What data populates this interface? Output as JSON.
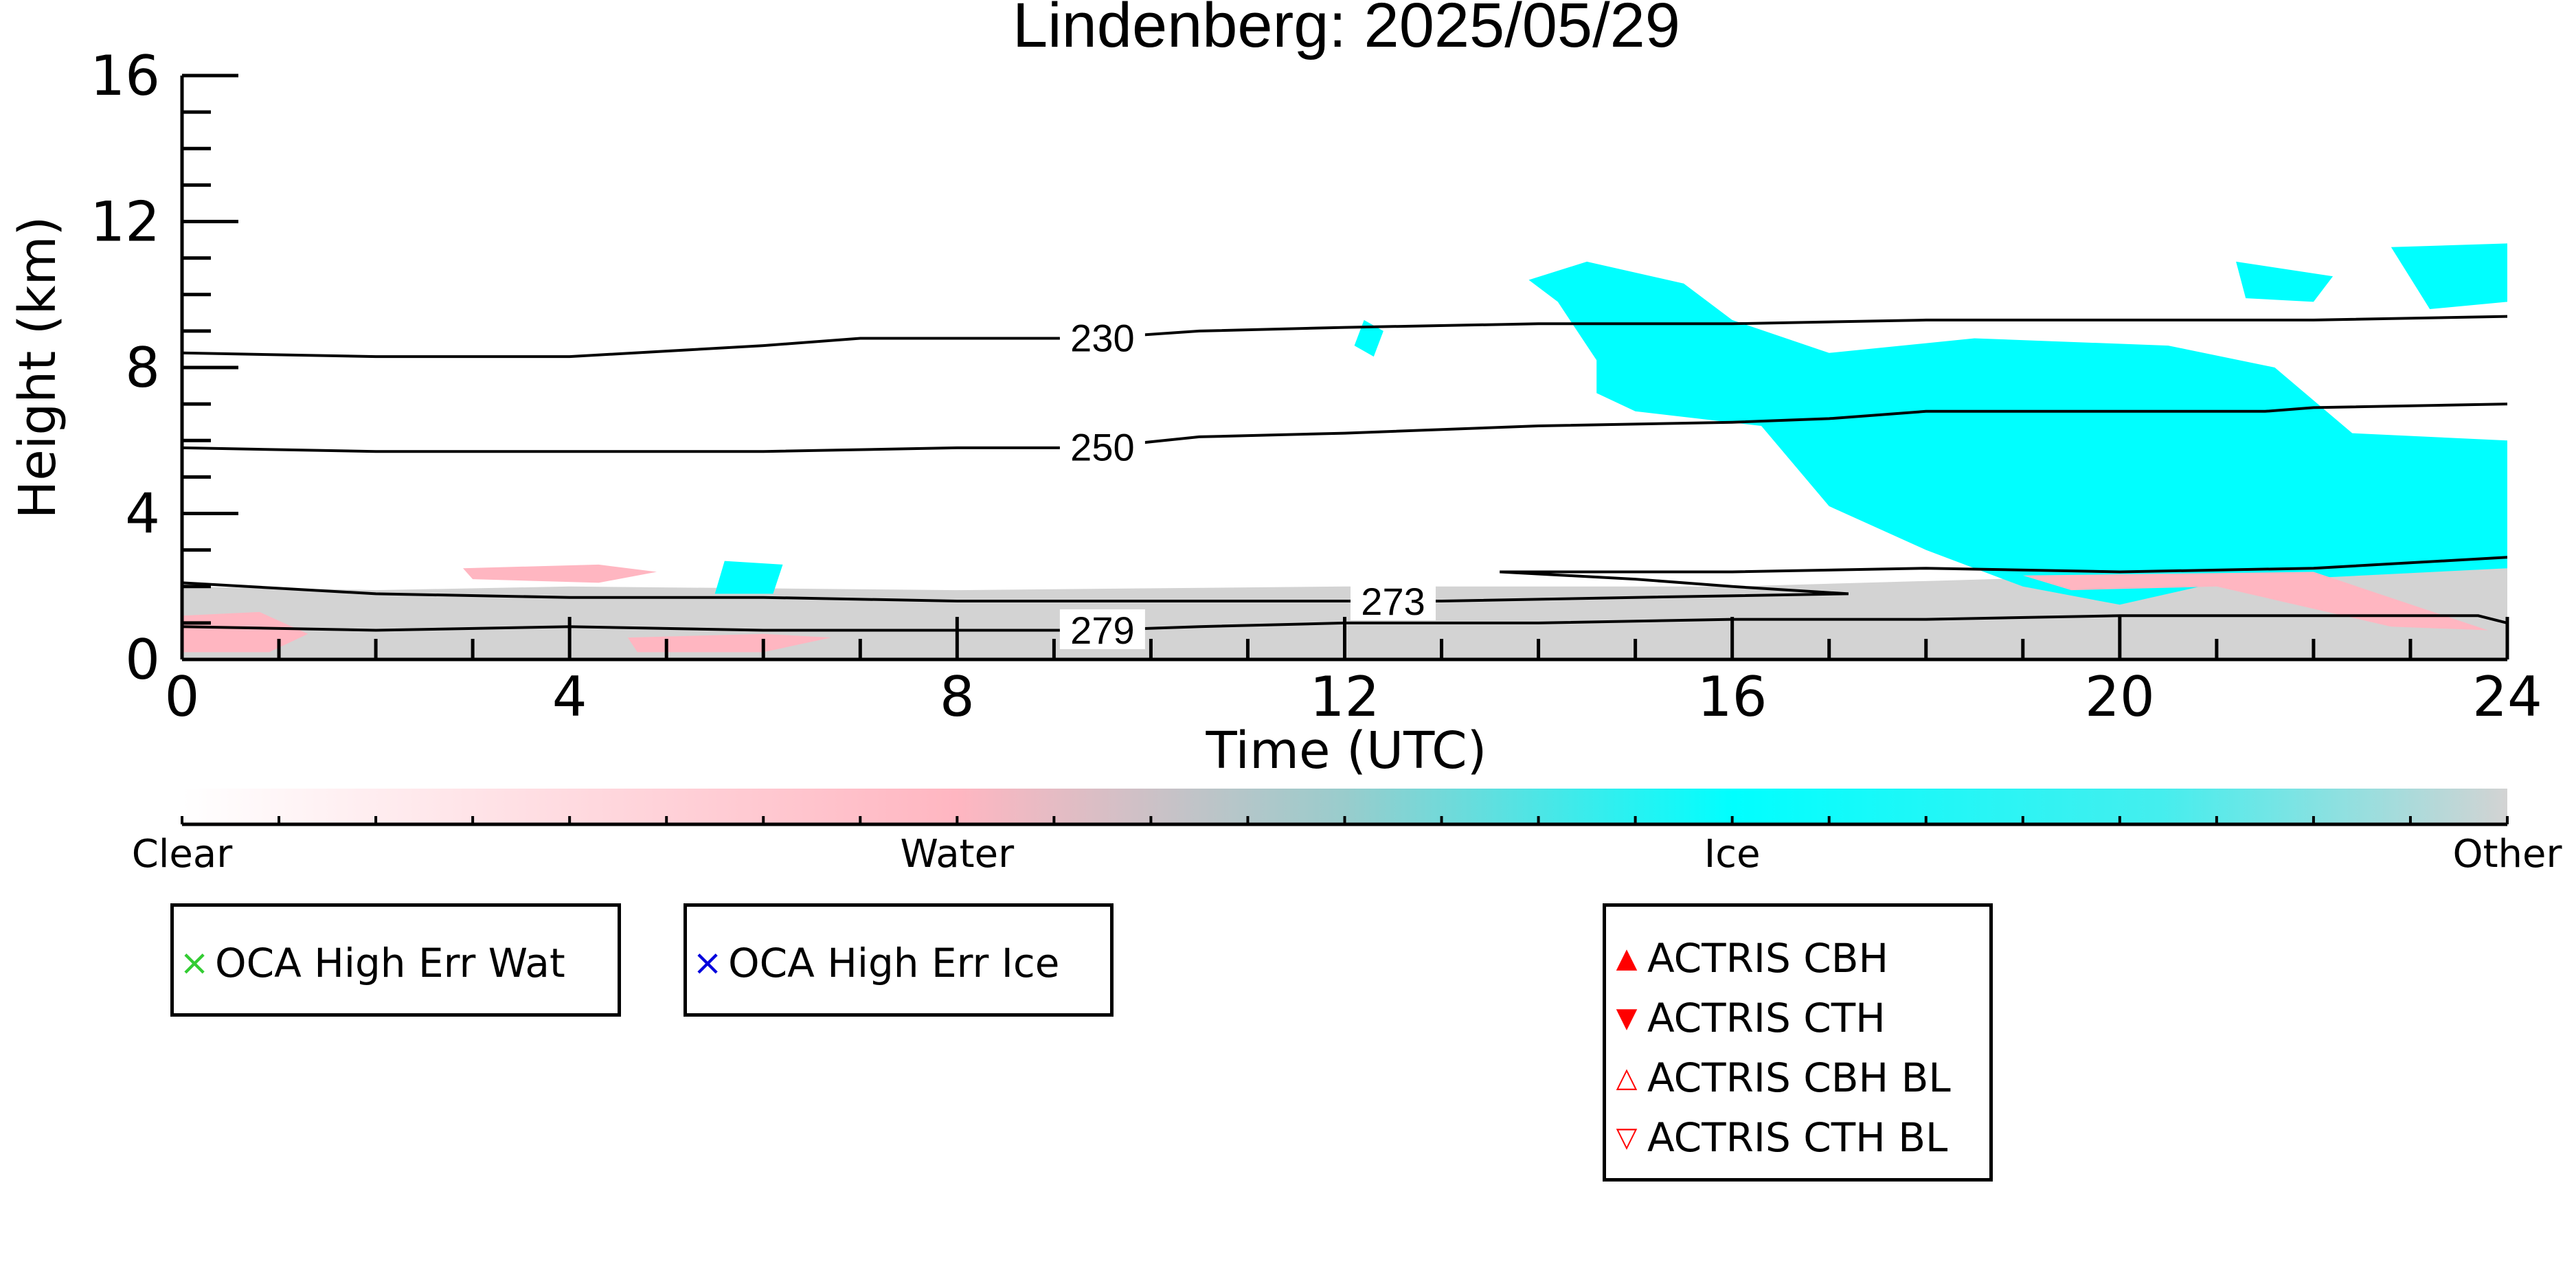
{
  "chart_data": {
    "type": "heatmap",
    "title": "Lindenberg: 2025/05/29",
    "xlabel": "Time (UTC)",
    "ylabel": "Height (km)",
    "xlim": [
      0,
      24
    ],
    "ylim": [
      0,
      16
    ],
    "x_ticks": [
      "0",
      "4",
      "8",
      "12",
      "16",
      "20",
      "24"
    ],
    "y_ticks": [
      "0",
      "4",
      "8",
      "12",
      "16"
    ],
    "classes": [
      {
        "name": "Clear",
        "color": "#ffffff"
      },
      {
        "name": "Water",
        "color": "#ffb6c1"
      },
      {
        "name": "Ice",
        "color": "#00ffff"
      },
      {
        "name": "Other",
        "color": "#d3d3d3"
      }
    ],
    "regions": [
      {
        "class": "Other",
        "points": [
          [
            0,
            0
          ],
          [
            0,
            2.0
          ],
          [
            2,
            1.9
          ],
          [
            4,
            2.0
          ],
          [
            8,
            1.9
          ],
          [
            12,
            2.0
          ],
          [
            16,
            2.0
          ],
          [
            20,
            2.3
          ],
          [
            24,
            2.6
          ],
          [
            24,
            0
          ]
        ]
      },
      {
        "class": "Ice",
        "points": [
          [
            13.9,
            10.4
          ],
          [
            14.5,
            10.9
          ],
          [
            15.5,
            10.3
          ],
          [
            16.0,
            9.3
          ],
          [
            17.0,
            8.4
          ],
          [
            18.5,
            8.8
          ],
          [
            20.5,
            8.6
          ],
          [
            21.6,
            8.0
          ],
          [
            22.4,
            6.2
          ],
          [
            24,
            6.0
          ],
          [
            24,
            2.5
          ],
          [
            21.0,
            2.1
          ],
          [
            20.0,
            1.5
          ],
          [
            19.0,
            2.0
          ],
          [
            18.0,
            3.0
          ],
          [
            17.0,
            4.2
          ],
          [
            16.3,
            6.4
          ],
          [
            15.0,
            6.8
          ],
          [
            14.6,
            7.3
          ],
          [
            14.6,
            8.2
          ],
          [
            14.2,
            9.8
          ]
        ]
      },
      {
        "class": "Ice",
        "points": [
          [
            21.2,
            10.9
          ],
          [
            22.2,
            10.5
          ],
          [
            22.0,
            9.8
          ],
          [
            21.3,
            9.9
          ]
        ]
      },
      {
        "class": "Ice",
        "points": [
          [
            22.8,
            11.3
          ],
          [
            24,
            11.4
          ],
          [
            24,
            9.8
          ],
          [
            23.2,
            9.6
          ]
        ]
      },
      {
        "class": "Ice",
        "points": [
          [
            12.2,
            9.3
          ],
          [
            12.4,
            9.0
          ],
          [
            12.3,
            8.3
          ],
          [
            12.1,
            8.6
          ]
        ]
      },
      {
        "class": "Ice",
        "points": [
          [
            5.6,
            2.7
          ],
          [
            6.2,
            2.6
          ],
          [
            6.1,
            1.8
          ],
          [
            5.5,
            1.8
          ]
        ]
      },
      {
        "class": "Water",
        "points": [
          [
            2.9,
            2.5
          ],
          [
            4.3,
            2.6
          ],
          [
            4.9,
            2.4
          ],
          [
            4.3,
            2.1
          ],
          [
            3.0,
            2.2
          ]
        ]
      },
      {
        "class": "Water",
        "points": [
          [
            0,
            1.2
          ],
          [
            0.8,
            1.3
          ],
          [
            1.3,
            0.7
          ],
          [
            0.9,
            0.2
          ],
          [
            0,
            0.2
          ]
        ]
      },
      {
        "class": "Water",
        "points": [
          [
            4.6,
            0.6
          ],
          [
            6.0,
            0.7
          ],
          [
            6.7,
            0.6
          ],
          [
            6.0,
            0.2
          ],
          [
            4.7,
            0.2
          ]
        ]
      },
      {
        "class": "Water",
        "points": [
          [
            19.0,
            2.3
          ],
          [
            22.0,
            2.4
          ],
          [
            23.8,
            0.8
          ],
          [
            22.8,
            0.9
          ],
          [
            21.0,
            2.0
          ],
          [
            19.5,
            1.9
          ]
        ]
      }
    ],
    "isotherms": [
      {
        "label": "230",
        "label_at": 9.5,
        "points": [
          [
            0,
            8.4
          ],
          [
            2,
            8.3
          ],
          [
            4,
            8.3
          ],
          [
            6,
            8.6
          ],
          [
            7,
            8.8
          ],
          [
            9.4,
            8.8
          ],
          [
            10.5,
            9.0
          ],
          [
            12,
            9.1
          ],
          [
            14,
            9.2
          ],
          [
            16,
            9.2
          ],
          [
            18,
            9.3
          ],
          [
            20,
            9.3
          ],
          [
            22,
            9.3
          ],
          [
            24,
            9.4
          ]
        ]
      },
      {
        "label": "250",
        "label_at": 9.5,
        "points": [
          [
            0,
            5.8
          ],
          [
            2,
            5.7
          ],
          [
            4,
            5.7
          ],
          [
            6,
            5.7
          ],
          [
            8,
            5.8
          ],
          [
            9.4,
            5.8
          ],
          [
            10.5,
            6.1
          ],
          [
            12,
            6.2
          ],
          [
            14,
            6.4
          ],
          [
            16,
            6.5
          ],
          [
            17,
            6.6
          ],
          [
            18,
            6.8
          ],
          [
            20,
            6.8
          ],
          [
            21.5,
            6.8
          ],
          [
            22,
            6.9
          ],
          [
            24,
            7.0
          ]
        ]
      },
      {
        "label": "273",
        "label_at": 12.5,
        "points": [
          [
            0,
            2.1
          ],
          [
            2,
            1.8
          ],
          [
            4,
            1.7
          ],
          [
            6,
            1.7
          ],
          [
            8,
            1.6
          ],
          [
            10,
            1.6
          ],
          [
            12,
            1.6
          ],
          [
            13,
            1.6
          ],
          [
            15,
            1.7
          ],
          [
            17.2,
            1.8
          ],
          [
            16,
            2.0
          ],
          [
            15,
            2.2
          ],
          [
            13.6,
            2.4
          ],
          [
            16,
            2.4
          ],
          [
            18,
            2.5
          ],
          [
            20,
            2.4
          ],
          [
            22,
            2.5
          ],
          [
            24,
            2.8
          ]
        ]
      },
      {
        "label": "279",
        "label_at": 9.5,
        "points": [
          [
            0,
            0.9
          ],
          [
            2,
            0.8
          ],
          [
            4,
            0.9
          ],
          [
            6,
            0.8
          ],
          [
            8,
            0.8
          ],
          [
            9.4,
            0.8
          ],
          [
            10.5,
            0.9
          ],
          [
            12,
            1.0
          ],
          [
            14,
            1.0
          ],
          [
            16,
            1.1
          ],
          [
            18,
            1.1
          ],
          [
            20,
            1.2
          ],
          [
            22,
            1.2
          ],
          [
            23.7,
            1.2
          ],
          [
            24,
            1.0
          ]
        ]
      }
    ],
    "colorbar": {
      "labels": [
        "Clear",
        "Water",
        "Ice",
        "Other"
      ]
    },
    "legends": [
      {
        "items": [
          {
            "label": "OCA High Err Wat",
            "marker": "×",
            "color": "#33cc33"
          }
        ]
      },
      {
        "items": [
          {
            "label": "OCA High Err Ice",
            "marker": "×",
            "color": "#0000dd"
          }
        ]
      },
      {
        "items": [
          {
            "label": "ACTRIS CBH",
            "marker": "▲",
            "color": "#ff0000"
          },
          {
            "label": "ACTRIS CTH",
            "marker": "▼",
            "color": "#ff0000"
          },
          {
            "label": "ACTRIS CBH BL",
            "marker": "△",
            "color": "#ff0000"
          },
          {
            "label": "ACTRIS CTH BL",
            "marker": "▽",
            "color": "#ff0000"
          }
        ]
      }
    ]
  }
}
